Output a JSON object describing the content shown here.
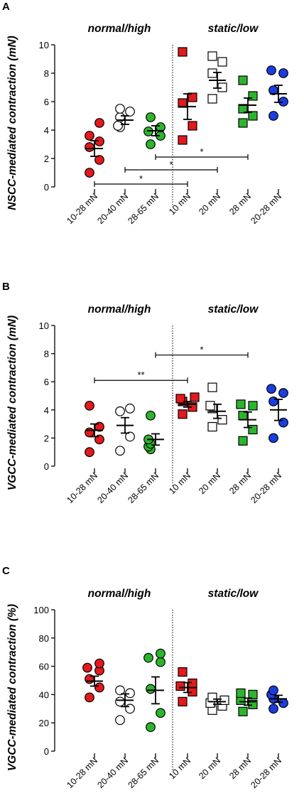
{
  "chart_data": [
    {
      "type": "scatter",
      "panel_label": "A",
      "ylabel": "NSCC-mediated contraction (mN)",
      "ylim": [
        0,
        10
      ],
      "yticks": [
        "0",
        "2",
        "4",
        "6",
        "8",
        "10"
      ],
      "categories": [
        "10-28 mN",
        "20-40 mN",
        "28-65 mN",
        "10 mN",
        "20 mN",
        "28 mN",
        "20-28 mN"
      ],
      "group_labels": [
        "normal/high",
        "static/low"
      ],
      "series": [
        {
          "category": "10-28 mN",
          "marker": "circle",
          "color": "#e31a1c",
          "mean": 2.7,
          "sem": 0.55,
          "values": [
            1.0,
            1.9,
            2.8,
            3.2,
            3.6,
            4.5
          ]
        },
        {
          "category": "20-40 mN",
          "marker": "circle",
          "color": "#ffffff",
          "mean": 4.7,
          "sem": 0.3,
          "values": [
            4.2,
            4.3,
            4.9,
            5.3,
            5.5
          ]
        },
        {
          "category": "28-65 mN",
          "marker": "circle",
          "color": "#2cb52c",
          "mean": 3.95,
          "sem": 0.35,
          "values": [
            3.0,
            3.6,
            3.9,
            4.2,
            4.9
          ]
        },
        {
          "category": "10 mN",
          "marker": "square",
          "color": "#e31a1c",
          "mean": 5.65,
          "sem": 0.9,
          "values": [
            3.3,
            4.3,
            5.9,
            6.3,
            9.5
          ]
        },
        {
          "category": "20 mN",
          "marker": "square",
          "color": "#ffffff",
          "mean": 7.5,
          "sem": 0.55,
          "values": [
            6.2,
            7.0,
            8.0,
            8.8,
            9.2
          ]
        },
        {
          "category": "28 mN",
          "marker": "square",
          "color": "#2cb52c",
          "mean": 5.75,
          "sem": 0.5,
          "values": [
            4.5,
            5.0,
            5.5,
            6.4,
            7.5
          ]
        },
        {
          "category": "20-28 mN",
          "marker": "circle",
          "color": "#1a3de0",
          "mean": 6.55,
          "sem": 0.6,
          "values": [
            5.0,
            6.0,
            6.8,
            8.0,
            8.2
          ]
        }
      ],
      "significance": [
        {
          "from": "10-28 mN",
          "to": "10 mN",
          "y": 0.2,
          "label": "*"
        },
        {
          "from": "20-40 mN",
          "to": "20 mN",
          "y": 1.2,
          "label": "*"
        },
        {
          "from": "28-65 mN",
          "to": "28 mN",
          "y": 2.1,
          "label": "*"
        }
      ]
    },
    {
      "type": "scatter",
      "panel_label": "B",
      "ylabel": "VGCC-mediated contraction (mN)",
      "ylim": [
        0,
        10
      ],
      "yticks": [
        "0",
        "2",
        "4",
        "6",
        "8",
        "10"
      ],
      "categories": [
        "10-28 mN",
        "20-40 mN",
        "28-65 mN",
        "10 mN",
        "20 mN",
        "28 mN",
        "20-28 mN"
      ],
      "group_labels": [
        "normal/high",
        "static/low"
      ],
      "series": [
        {
          "category": "10-28 mN",
          "marker": "circle",
          "color": "#e31a1c",
          "mean": 2.55,
          "sem": 0.45,
          "values": [
            1.0,
            1.9,
            2.4,
            2.8,
            4.3
          ]
        },
        {
          "category": "20-40 mN",
          "marker": "circle",
          "color": "#ffffff",
          "mean": 2.9,
          "sem": 0.55,
          "values": [
            1.1,
            2.1,
            3.9,
            4.1
          ]
        },
        {
          "category": "28-65 mN",
          "marker": "circle",
          "color": "#2cb52c",
          "mean": 1.9,
          "sem": 0.4,
          "values": [
            1.2,
            1.4,
            1.6,
            1.9,
            3.6
          ]
        },
        {
          "category": "10 mN",
          "marker": "square",
          "color": "#e31a1c",
          "mean": 4.4,
          "sem": 0.2,
          "values": [
            3.7,
            4.2,
            4.6,
            4.8,
            4.9
          ]
        },
        {
          "category": "20 mN",
          "marker": "square",
          "color": "#ffffff",
          "mean": 3.9,
          "sem": 0.5,
          "values": [
            2.8,
            3.3,
            4.1,
            4.3,
            5.6
          ]
        },
        {
          "category": "28 mN",
          "marker": "square",
          "color": "#2cb52c",
          "mean": 3.3,
          "sem": 0.55,
          "values": [
            1.8,
            2.6,
            3.6,
            4.3,
            4.4
          ]
        },
        {
          "category": "20-28 mN",
          "marker": "circle",
          "color": "#1a3de0",
          "mean": 4.0,
          "sem": 0.75,
          "values": [
            2.0,
            3.1,
            4.6,
            5.2,
            5.5
          ]
        }
      ],
      "significance": [
        {
          "from": "10-28 mN",
          "to": "10 mN",
          "y": 6.1,
          "label": "**"
        },
        {
          "from": "28-65 mN",
          "to": "28 mN",
          "y": 7.9,
          "label": "*"
        }
      ]
    },
    {
      "type": "scatter",
      "panel_label": "C",
      "ylabel": "VGCC-mediated contraction (%)",
      "ylim": [
        0,
        100
      ],
      "yticks": [
        "0",
        "20",
        "40",
        "60",
        "80",
        "100"
      ],
      "categories": [
        "10-28 mN",
        "20-40 mN",
        "28-65 mN",
        "10 mN",
        "20 mN",
        "28 mN",
        "20-28 mN"
      ],
      "group_labels": [
        "normal/high",
        "static/low"
      ],
      "series": [
        {
          "category": "10-28 mN",
          "marker": "circle",
          "color": "#e31a1c",
          "mean": 49.5,
          "sem": 3.5,
          "values": [
            38,
            45,
            51,
            57,
            59,
            62
          ]
        },
        {
          "category": "20-40 mN",
          "marker": "circle",
          "color": "#ffffff",
          "mean": 36,
          "sem": 4.5,
          "values": [
            22,
            30,
            35,
            41,
            43
          ]
        },
        {
          "category": "28-65 mN",
          "marker": "circle",
          "color": "#2cb52c",
          "mean": 43,
          "sem": 9.5,
          "values": [
            17,
            27,
            44,
            63,
            66,
            69
          ]
        },
        {
          "category": "10 mN",
          "marker": "square",
          "color": "#e31a1c",
          "mean": 45,
          "sem": 3.5,
          "values": [
            35,
            42,
            46,
            48,
            56
          ]
        },
        {
          "category": "20 mN",
          "marker": "square",
          "color": "#ffffff",
          "mean": 35,
          "sem": 1.8,
          "values": [
            29,
            32,
            34,
            36,
            38
          ]
        },
        {
          "category": "28 mN",
          "marker": "square",
          "color": "#2cb52c",
          "mean": 35,
          "sem": 2.5,
          "values": [
            28,
            33,
            36,
            40,
            41
          ]
        },
        {
          "category": "20-28 mN",
          "marker": "circle",
          "color": "#1a3de0",
          "mean": 37,
          "sem": 2.5,
          "values": [
            30,
            34,
            37,
            40,
            43
          ]
        }
      ],
      "significance": []
    }
  ]
}
